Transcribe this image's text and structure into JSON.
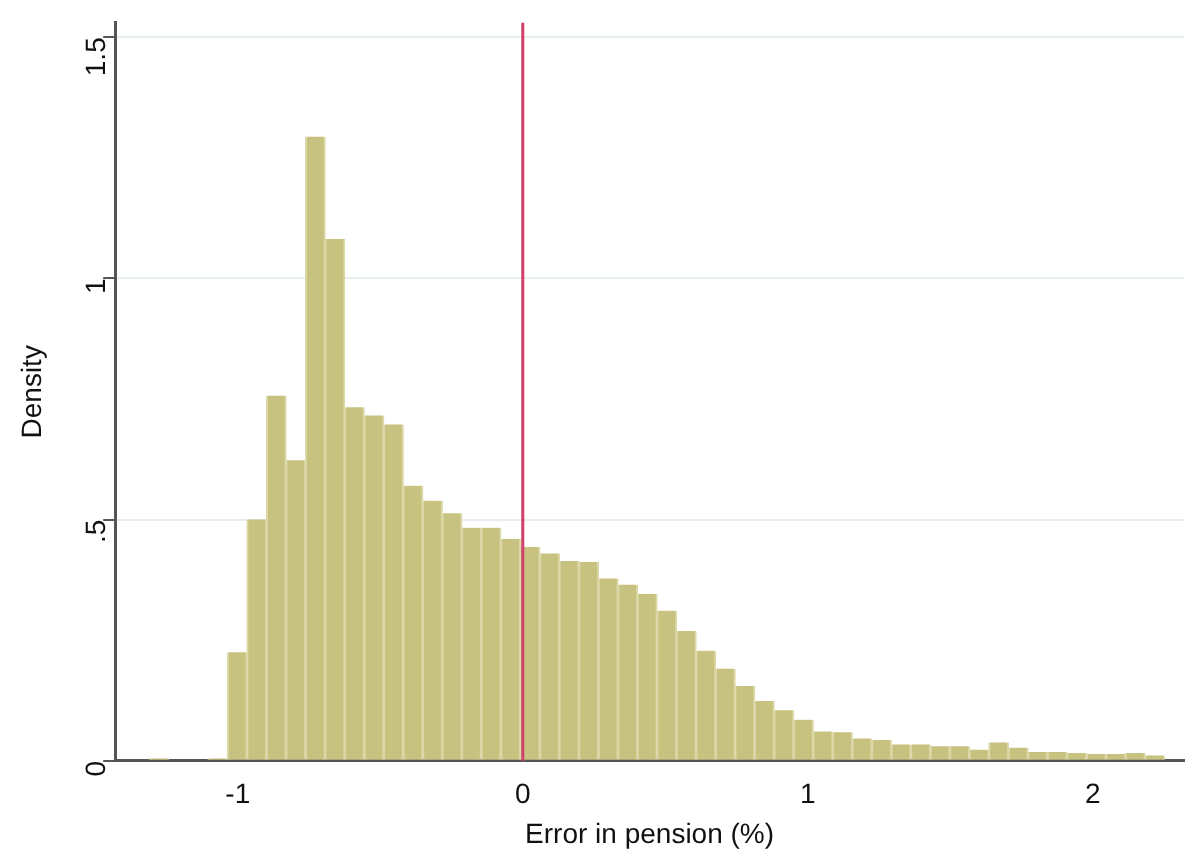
{
  "chart_data": {
    "type": "histogram",
    "xlabel": "Error in pension (%)",
    "ylabel": "Density",
    "bins": [
      -1.31,
      -1.2415,
      -1.173,
      -1.1045,
      -1.036,
      -0.9675,
      -0.899,
      -0.8305,
      -0.762,
      -0.6935,
      -0.625,
      -0.5565,
      -0.488,
      -0.4195,
      -0.351,
      -0.2825,
      -0.214,
      -0.1455,
      -0.077,
      -0.0085,
      0.06,
      0.1285,
      0.197,
      0.2655,
      0.334,
      0.4025,
      0.471,
      0.5395,
      0.608,
      0.6765,
      0.745,
      0.8135,
      0.882,
      0.9505,
      1.019,
      1.0875,
      1.156,
      1.2245,
      1.293,
      1.3615,
      1.43,
      1.4985,
      1.567,
      1.6355,
      1.704,
      1.7725,
      1.841,
      1.9095,
      1.978,
      2.0465,
      2.115,
      2.1835,
      2.252
    ],
    "values": [
      0.005,
      0,
      0,
      0.005,
      0.225,
      0.5,
      0.757,
      0.623,
      1.294,
      1.082,
      0.733,
      0.716,
      0.697,
      0.57,
      0.539,
      0.513,
      0.483,
      0.483,
      0.46,
      0.443,
      0.43,
      0.414,
      0.412,
      0.378,
      0.365,
      0.346,
      0.311,
      0.269,
      0.228,
      0.191,
      0.155,
      0.124,
      0.105,
      0.085,
      0.061,
      0.059,
      0.046,
      0.043,
      0.034,
      0.034,
      0.03,
      0.03,
      0.023,
      0.038,
      0.027,
      0.018,
      0.018,
      0.016,
      0.014,
      0.014,
      0.016,
      0.011
    ],
    "color": "#c8c280",
    "xlim": [
      -1.43,
      2.32
    ],
    "ylim": [
      0,
      1.53
    ],
    "xticks": [
      -1,
      0,
      1,
      2
    ],
    "yticks": [
      0,
      {
        "value": 0.5,
        "label": ".5"
      },
      1,
      1.5
    ],
    "grid": "y",
    "ref_lines": [
      {
        "axis": "x",
        "value": 0,
        "color": "#d0406a"
      }
    ]
  }
}
